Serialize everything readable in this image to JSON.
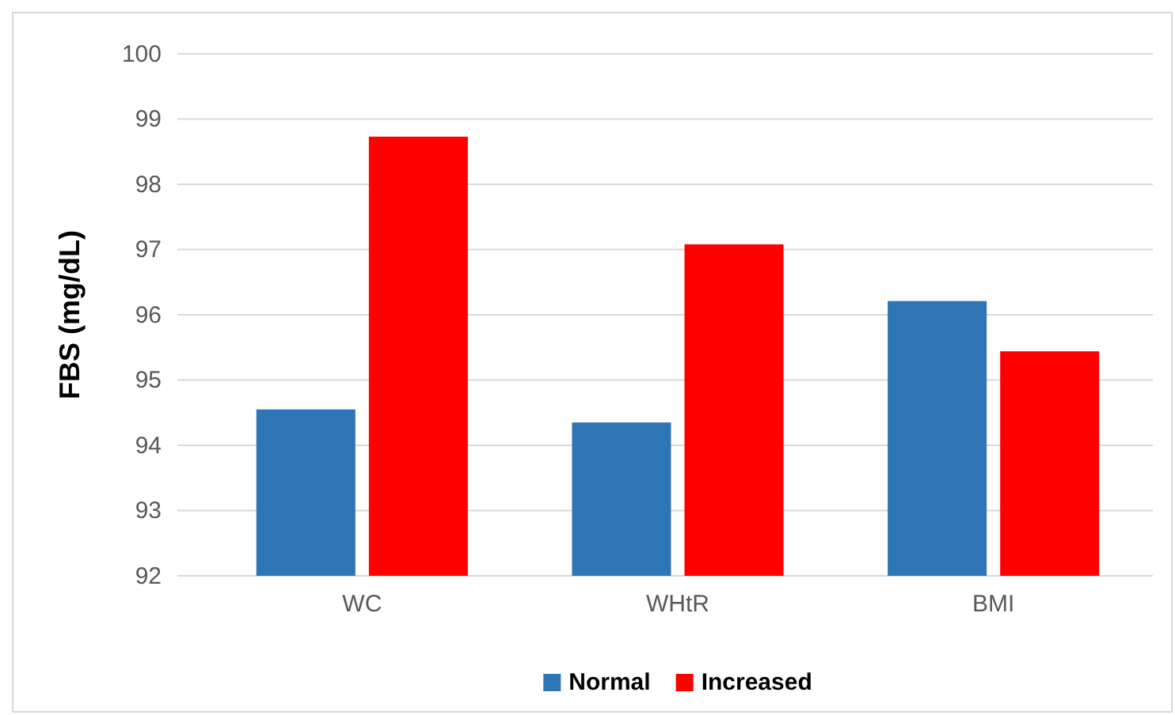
{
  "chart_data": {
    "type": "bar",
    "ylabel": "FBS (mg/dL)",
    "categories": [
      "WC",
      "WHtR",
      "BMI"
    ],
    "series": [
      {
        "name": "Normal",
        "color": "#2e75b6",
        "values": [
          94.55,
          94.35,
          96.21
        ]
      },
      {
        "name": "Increased",
        "color": "#ff0000",
        "values": [
          98.73,
          97.08,
          95.44
        ]
      }
    ],
    "ylim": [
      92,
      100
    ],
    "yticks": [
      92,
      93,
      94,
      95,
      96,
      97,
      98,
      99,
      100
    ],
    "grid": "y",
    "legend": "bottom"
  }
}
